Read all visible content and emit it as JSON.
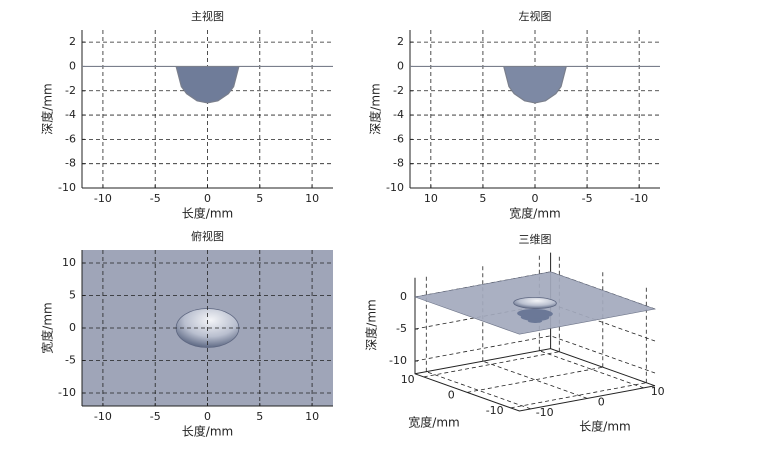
{
  "chart_data": [
    {
      "type": "profile",
      "title": "主视图",
      "xlabel": "长度/mm",
      "ylabel": "深度/mm",
      "xlim": [
        -12,
        12
      ],
      "xticks": [
        -10,
        -5,
        0,
        5,
        10
      ],
      "ylim": [
        -10,
        3
      ],
      "yticks": [
        -10,
        -8,
        -6,
        -4,
        -2,
        0,
        2
      ],
      "grid": true,
      "color": "#6f7c99",
      "crater": {
        "x": [
          -12,
          -3,
          -2.5,
          -2,
          -1,
          0,
          1,
          2,
          2.5,
          3,
          12
        ],
        "values": [
          0,
          0,
          -1.66,
          -2.24,
          -2.83,
          -3,
          -2.83,
          -2.24,
          -1.66,
          0,
          0
        ]
      }
    },
    {
      "type": "profile",
      "title": "左视图",
      "xlabel": "宽度/mm",
      "ylabel": "深度/mm",
      "xlim": [
        12,
        -12
      ],
      "xticks": [
        10,
        5,
        0,
        -5,
        -10
      ],
      "ylim": [
        -10,
        3
      ],
      "yticks": [
        -10,
        -8,
        -6,
        -4,
        -2,
        0,
        2
      ],
      "grid": true,
      "color": "#7d89a4",
      "crater": {
        "x": [
          -12,
          -3,
          -2.5,
          -2,
          -1,
          0,
          1,
          2,
          2.5,
          3,
          12
        ],
        "values": [
          0,
          0,
          -1.66,
          -2.24,
          -2.83,
          -3,
          -2.83,
          -2.24,
          -1.66,
          0,
          0
        ]
      }
    },
    {
      "type": "topview",
      "title": "俯视图",
      "xlabel": "长度/mm",
      "ylabel": "宽度/mm",
      "xlim": [
        -12,
        12
      ],
      "xticks": [
        -10,
        -5,
        0,
        5,
        10
      ],
      "ylim": [
        -12,
        12
      ],
      "yticks": [
        -10,
        -5,
        0,
        5,
        10
      ],
      "grid": true,
      "color": "#9fa5b8",
      "crater": {
        "x": [
          -12,
          -3,
          -2.5,
          -2,
          -1,
          0,
          1,
          2,
          2.5,
          3,
          12
        ],
        "values": [
          0,
          0,
          -1.66,
          -2.24,
          -2.83,
          -3,
          -2.83,
          -2.24,
          -1.66,
          0,
          0
        ]
      }
    },
    {
      "type": "surface3d",
      "title": "三维图",
      "xlabel": "长度/mm",
      "ylabel": "宽度/mm",
      "zlabel": "深度/mm",
      "xlim": [
        -12,
        12
      ],
      "xticks": [
        -10,
        0,
        10
      ],
      "ylim": [
        -12,
        12
      ],
      "yticks": [
        -10,
        0,
        10
      ],
      "zlim": [
        -12,
        3
      ],
      "zticks": [
        -10,
        -5,
        0
      ],
      "grid": true,
      "color": "#a3a9bd",
      "crater": {
        "x": [
          -12,
          -3,
          -2.5,
          -2,
          -1,
          0,
          1,
          2,
          2.5,
          3,
          12
        ],
        "values": [
          0,
          0,
          -1.66,
          -2.24,
          -2.83,
          -3,
          -2.83,
          -2.24,
          -1.66,
          0,
          0
        ]
      }
    }
  ]
}
